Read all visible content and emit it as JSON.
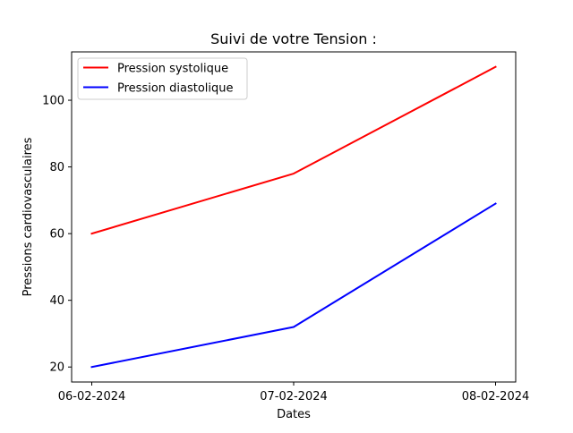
{
  "chart_data": {
    "type": "line",
    "title": "Suivi de votre Tension :",
    "xlabel": "Dates",
    "ylabel": "Pressions cardiovasculaires",
    "x": [
      "06-02-2024",
      "07-02-2024",
      "08-02-2024"
    ],
    "series": [
      {
        "name": "Pression systolique",
        "color": "#ff0000",
        "values": [
          60,
          78,
          110
        ]
      },
      {
        "name": "Pression diastolique",
        "color": "#0000ff",
        "values": [
          20,
          32,
          69
        ]
      }
    ],
    "ylim": [
      15.5,
      114.5
    ],
    "yticks": [
      20,
      40,
      60,
      80,
      100
    ],
    "grid": false,
    "legend": "top-left"
  }
}
